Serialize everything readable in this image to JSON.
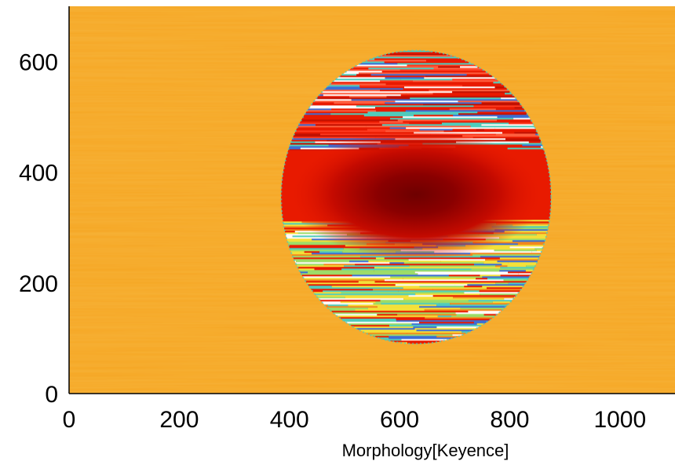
{
  "chart_data": {
    "type": "heatmap",
    "title": "",
    "xlabel": "Morphology[Keyence]",
    "ylabel": "",
    "xlim": [
      0,
      1100
    ],
    "ylim": [
      0,
      700
    ],
    "x_ticks": [
      "0",
      "200",
      "400",
      "600",
      "800",
      "1000"
    ],
    "y_ticks": [
      "0",
      "200",
      "400",
      "600"
    ],
    "background_value_color": "#f5a623",
    "feature": {
      "shape": "ellipse",
      "center_x": 630,
      "center_y": 355,
      "radius_x": 245,
      "radius_y": 265,
      "core_center_x": 630,
      "core_center_y": 360,
      "core_color": "#7a0000"
    },
    "colors": {
      "background": "#f5a623",
      "rim_red": "#e81a00",
      "dark_red": "#7a0000",
      "stripe_cyan": "#4dd0c0",
      "stripe_yellow": "#f4e43a",
      "stripe_blue": "#3a6fd8",
      "stripe_white": "#ffffff"
    },
    "grid": false,
    "legend": "none"
  }
}
